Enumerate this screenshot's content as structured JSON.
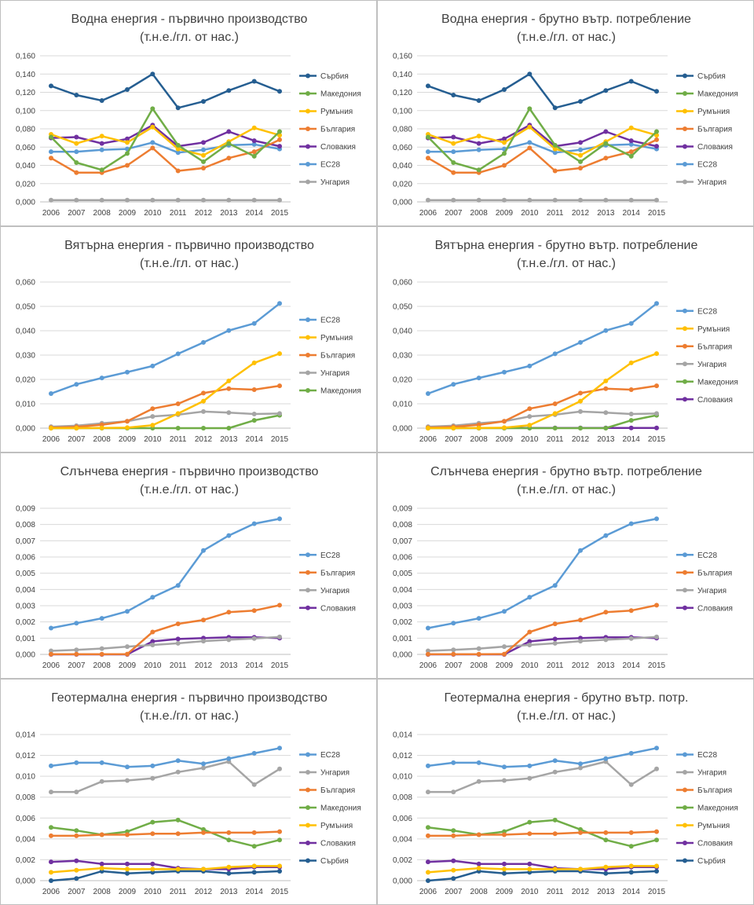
{
  "colors": {
    "Сърбия": "#255E91",
    "Македония": "#70AD47",
    "Румъния": "#FFC000",
    "България": "#ED7D31",
    "Словакия": "#7030A0",
    "ЕС28": "#5B9BD5",
    "Унгария": "#A5A5A5"
  },
  "chart_data": [
    {
      "type": "line",
      "title": "Водна енергия - първично производство",
      "subtitle": "(т.н.е./гл. от нас.)",
      "x": [
        "2006",
        "2007",
        "2008",
        "2009",
        "2010",
        "2011",
        "2012",
        "2013",
        "2014",
        "2015"
      ],
      "ylim": [
        0,
        0.16
      ],
      "ystep": 0.02,
      "ydecimals": 3,
      "yticks": [
        "0,000",
        "0,020",
        "0,040",
        "0,060",
        "0,080",
        "0,100",
        "0,120",
        "0,140",
        "0,160"
      ],
      "grid": true,
      "legend": "right",
      "series": [
        {
          "name": "Сърбия",
          "values": [
            0.127,
            0.117,
            0.111,
            0.123,
            0.14,
            0.103,
            0.11,
            0.122,
            0.132,
            0.121
          ]
        },
        {
          "name": "Македония",
          "values": [
            0.071,
            0.043,
            0.035,
            0.053,
            0.102,
            0.062,
            0.044,
            0.064,
            0.05,
            0.077
          ]
        },
        {
          "name": "Румъния",
          "values": [
            0.074,
            0.064,
            0.072,
            0.065,
            0.082,
            0.058,
            0.051,
            0.066,
            0.081,
            0.073
          ]
        },
        {
          "name": "България",
          "values": [
            0.048,
            0.032,
            0.032,
            0.04,
            0.059,
            0.034,
            0.037,
            0.048,
            0.055,
            0.068
          ]
        },
        {
          "name": "Словакия",
          "values": [
            0.07,
            0.071,
            0.064,
            0.069,
            0.084,
            0.061,
            0.065,
            0.077,
            0.067,
            0.061
          ]
        },
        {
          "name": "ЕС28",
          "values": [
            0.055,
            0.055,
            0.057,
            0.058,
            0.065,
            0.054,
            0.057,
            0.062,
            0.063,
            0.058
          ]
        },
        {
          "name": "Унгария",
          "values": [
            0.002,
            0.002,
            0.002,
            0.002,
            0.002,
            0.002,
            0.002,
            0.002,
            0.002,
            0.002
          ]
        }
      ]
    },
    {
      "type": "line",
      "title": "Водна енергия - брутно вътр. потребление",
      "subtitle": "(т.н.е./гл. от нас.)",
      "x": [
        "2006",
        "2007",
        "2008",
        "2009",
        "2010",
        "2011",
        "2012",
        "2013",
        "2014",
        "2015"
      ],
      "ylim": [
        0,
        0.16
      ],
      "ystep": 0.02,
      "ydecimals": 3,
      "yticks": [
        "0,000",
        "0,020",
        "0,040",
        "0,060",
        "0,080",
        "0,100",
        "0,120",
        "0,140",
        "0,160"
      ],
      "grid": true,
      "legend": "right",
      "series": [
        {
          "name": "Сърбия",
          "values": [
            0.127,
            0.117,
            0.111,
            0.123,
            0.14,
            0.103,
            0.11,
            0.122,
            0.132,
            0.121
          ]
        },
        {
          "name": "Македония",
          "values": [
            0.071,
            0.043,
            0.035,
            0.053,
            0.102,
            0.062,
            0.044,
            0.064,
            0.05,
            0.077
          ]
        },
        {
          "name": "Румъния",
          "values": [
            0.074,
            0.064,
            0.072,
            0.065,
            0.082,
            0.058,
            0.051,
            0.066,
            0.081,
            0.073
          ]
        },
        {
          "name": "България",
          "values": [
            0.048,
            0.032,
            0.032,
            0.04,
            0.059,
            0.034,
            0.037,
            0.048,
            0.055,
            0.068
          ]
        },
        {
          "name": "Словакия",
          "values": [
            0.07,
            0.071,
            0.064,
            0.069,
            0.084,
            0.061,
            0.065,
            0.077,
            0.067,
            0.061
          ]
        },
        {
          "name": "ЕС28",
          "values": [
            0.055,
            0.055,
            0.057,
            0.058,
            0.065,
            0.054,
            0.057,
            0.062,
            0.063,
            0.058
          ]
        },
        {
          "name": "Унгария",
          "values": [
            0.002,
            0.002,
            0.002,
            0.002,
            0.002,
            0.002,
            0.002,
            0.002,
            0.002,
            0.002
          ]
        }
      ]
    },
    {
      "type": "line",
      "title": "Вятърна енергия - първично производство",
      "subtitle": "(т.н.е./гл. от нас.)",
      "x": [
        "2006",
        "2007",
        "2008",
        "2009",
        "2010",
        "2011",
        "2012",
        "2013",
        "2014",
        "2015"
      ],
      "ylim": [
        0,
        0.06
      ],
      "ystep": 0.01,
      "ydecimals": 3,
      "yticks": [
        "0,000",
        "0,010",
        "0,020",
        "0,030",
        "0,040",
        "0,050",
        "0,060"
      ],
      "grid": true,
      "legend": "right",
      "series": [
        {
          "name": "ЕС28",
          "values": [
            0.0142,
            0.018,
            0.0206,
            0.023,
            0.0255,
            0.0305,
            0.0352,
            0.0401,
            0.043,
            0.0512
          ]
        },
        {
          "name": "Румъния",
          "values": [
            0.0,
            0.0,
            0.0001,
            0.0002,
            0.0012,
            0.006,
            0.0111,
            0.0194,
            0.0268,
            0.0306
          ]
        },
        {
          "name": "България",
          "values": [
            0.0002,
            0.0005,
            0.0014,
            0.0028,
            0.008,
            0.01,
            0.0144,
            0.0162,
            0.0158,
            0.0174
          ]
        },
        {
          "name": "Унгария",
          "values": [
            0.0006,
            0.001,
            0.002,
            0.0028,
            0.0048,
            0.0055,
            0.0068,
            0.0064,
            0.0058,
            0.006
          ]
        },
        {
          "name": "Македония",
          "values": [
            0.0,
            0.0,
            0.0,
            0.0,
            0.0,
            0.0,
            0.0,
            0.0,
            0.0032,
            0.0053
          ]
        }
      ]
    },
    {
      "type": "line",
      "title": "Вятърна енергия - брутно вътр. потребление",
      "subtitle": "(т.н.е./гл. от нас.)",
      "x": [
        "2006",
        "2007",
        "2008",
        "2009",
        "2010",
        "2011",
        "2012",
        "2013",
        "2014",
        "2015"
      ],
      "ylim": [
        0,
        0.06
      ],
      "ystep": 0.01,
      "ydecimals": 3,
      "yticks": [
        "0,000",
        "0,010",
        "0,020",
        "0,030",
        "0,040",
        "0,050",
        "0,060"
      ],
      "grid": true,
      "legend": "right",
      "series": [
        {
          "name": "ЕС28",
          "values": [
            0.0142,
            0.018,
            0.0206,
            0.023,
            0.0255,
            0.0305,
            0.0352,
            0.0401,
            0.043,
            0.0512
          ]
        },
        {
          "name": "Румъния",
          "values": [
            0.0,
            0.0,
            0.0001,
            0.0002,
            0.0012,
            0.006,
            0.0111,
            0.0194,
            0.0268,
            0.0306
          ]
        },
        {
          "name": "България",
          "values": [
            0.0002,
            0.0005,
            0.0014,
            0.0028,
            0.008,
            0.01,
            0.0144,
            0.0162,
            0.0158,
            0.0174
          ]
        },
        {
          "name": "Унгария",
          "values": [
            0.0006,
            0.001,
            0.002,
            0.0028,
            0.0048,
            0.0055,
            0.0068,
            0.0064,
            0.0058,
            0.006
          ]
        },
        {
          "name": "Македония",
          "values": [
            0.0,
            0.0,
            0.0,
            0.0,
            0.0,
            0.0,
            0.0,
            0.0,
            0.0032,
            0.0053
          ]
        },
        {
          "name": "Словакия",
          "values": [
            0.0001,
            0.0001,
            0.0001,
            0.0001,
            0.0001,
            0.0001,
            0.0001,
            0.0001,
            0.0001,
            0.0001
          ]
        }
      ]
    },
    {
      "type": "line",
      "title": "Слънчева енергия - първично производство",
      "subtitle": "(т.н.е./гл. от нас.)",
      "x": [
        "2006",
        "2007",
        "2008",
        "2009",
        "2010",
        "2011",
        "2012",
        "2013",
        "2014",
        "2015"
      ],
      "ylim": [
        0,
        0.009
      ],
      "ystep": 0.001,
      "ydecimals": 3,
      "yticks": [
        "0,000",
        "0,001",
        "0,002",
        "0,003",
        "0,004",
        "0,005",
        "0,006",
        "0,007",
        "0,008",
        "0,009"
      ],
      "grid": true,
      "legend": "right",
      "series": [
        {
          "name": "ЕС28",
          "values": [
            0.00162,
            0.00192,
            0.00222,
            0.00265,
            0.00352,
            0.00425,
            0.0064,
            0.00732,
            0.00805,
            0.00835
          ]
        },
        {
          "name": "България",
          "values": [
            1e-05,
            1e-05,
            1e-05,
            2e-05,
            0.00138,
            0.00188,
            0.00212,
            0.0026,
            0.0027,
            0.00303
          ]
        },
        {
          "name": "Унгария",
          "values": [
            0.00022,
            0.00028,
            0.00036,
            0.00048,
            0.00058,
            0.00068,
            0.00082,
            0.0009,
            0.00098,
            0.00108
          ]
        },
        {
          "name": "Словакия",
          "values": [
            0.0,
            0.0,
            0.0,
            0.0,
            0.0008,
            0.00095,
            0.001,
            0.00105,
            0.00105,
            0.001
          ]
        }
      ]
    },
    {
      "type": "line",
      "title": "Слънчева енергия - брутно вътр. потребление",
      "subtitle": "(т.н.е./гл. от нас.)",
      "x": [
        "2006",
        "2007",
        "2008",
        "2009",
        "2010",
        "2011",
        "2012",
        "2013",
        "2014",
        "2015"
      ],
      "ylim": [
        0,
        0.009
      ],
      "ystep": 0.001,
      "ydecimals": 3,
      "yticks": [
        "0,000",
        "0,001",
        "0,002",
        "0,003",
        "0,004",
        "0,005",
        "0,006",
        "0,007",
        "0,008",
        "0,009"
      ],
      "grid": true,
      "legend": "right",
      "series": [
        {
          "name": "ЕС28",
          "values": [
            0.00162,
            0.00192,
            0.00222,
            0.00265,
            0.00352,
            0.00425,
            0.0064,
            0.00732,
            0.00805,
            0.00835
          ]
        },
        {
          "name": "България",
          "values": [
            1e-05,
            1e-05,
            1e-05,
            2e-05,
            0.00138,
            0.00188,
            0.00212,
            0.0026,
            0.0027,
            0.00303
          ]
        },
        {
          "name": "Унгария",
          "values": [
            0.00022,
            0.00028,
            0.00036,
            0.00048,
            0.00058,
            0.00068,
            0.00082,
            0.0009,
            0.00098,
            0.00108
          ]
        },
        {
          "name": "Словакия",
          "values": [
            0.0,
            0.0,
            0.0,
            0.0,
            0.0008,
            0.00095,
            0.001,
            0.00105,
            0.00105,
            0.001
          ]
        }
      ]
    },
    {
      "type": "line",
      "title": "Геотермална енергия - първично производство",
      "subtitle": "(т.н.е./гл. от нас.)",
      "x": [
        "2006",
        "2007",
        "2008",
        "2009",
        "2010",
        "2011",
        "2012",
        "2013",
        "2014",
        "2015"
      ],
      "ylim": [
        0,
        0.014
      ],
      "ystep": 0.002,
      "ydecimals": 3,
      "yticks": [
        "0,000",
        "0,002",
        "0,004",
        "0,006",
        "0,008",
        "0,010",
        "0,012",
        "0,014"
      ],
      "grid": true,
      "legend": "right",
      "series": [
        {
          "name": "ЕС28",
          "values": [
            0.011,
            0.0113,
            0.0113,
            0.0109,
            0.011,
            0.0115,
            0.0112,
            0.0117,
            0.0122,
            0.0127
          ]
        },
        {
          "name": "Унгария",
          "values": [
            0.0085,
            0.0085,
            0.0095,
            0.0096,
            0.0098,
            0.0104,
            0.0108,
            0.0114,
            0.0092,
            0.0107
          ]
        },
        {
          "name": "България",
          "values": [
            0.0043,
            0.0043,
            0.0044,
            0.0044,
            0.0045,
            0.0045,
            0.0046,
            0.0046,
            0.0046,
            0.0047
          ]
        },
        {
          "name": "Македония",
          "values": [
            0.0051,
            0.0048,
            0.0044,
            0.0047,
            0.0056,
            0.0058,
            0.0049,
            0.0039,
            0.0033,
            0.0039
          ]
        },
        {
          "name": "Румъния",
          "values": [
            0.0008,
            0.001,
            0.0012,
            0.0011,
            0.0011,
            0.0011,
            0.0011,
            0.0013,
            0.0014,
            0.0014
          ]
        },
        {
          "name": "Словакия",
          "values": [
            0.0018,
            0.0019,
            0.0016,
            0.0016,
            0.0016,
            0.0012,
            0.0011,
            0.0011,
            0.0013,
            0.0013
          ]
        },
        {
          "name": "Сърбия",
          "values": [
            0.0,
            0.0002,
            0.0009,
            0.0007,
            0.0008,
            0.0009,
            0.0009,
            0.0007,
            0.0008,
            0.0009
          ]
        }
      ]
    },
    {
      "type": "line",
      "title": "Геотермална енергия - брутно вътр. потр.",
      "subtitle": "(т.н.е./гл. от нас.)",
      "x": [
        "2006",
        "2007",
        "2008",
        "2009",
        "2010",
        "2011",
        "2012",
        "2013",
        "2014",
        "2015"
      ],
      "ylim": [
        0,
        0.014
      ],
      "ystep": 0.002,
      "ydecimals": 3,
      "yticks": [
        "0,000",
        "0,002",
        "0,004",
        "0,006",
        "0,008",
        "0,010",
        "0,012",
        "0,014"
      ],
      "grid": true,
      "legend": "right",
      "series": [
        {
          "name": "ЕС28",
          "values": [
            0.011,
            0.0113,
            0.0113,
            0.0109,
            0.011,
            0.0115,
            0.0112,
            0.0117,
            0.0122,
            0.0127
          ]
        },
        {
          "name": "Унгария",
          "values": [
            0.0085,
            0.0085,
            0.0095,
            0.0096,
            0.0098,
            0.0104,
            0.0108,
            0.0114,
            0.0092,
            0.0107
          ]
        },
        {
          "name": "България",
          "values": [
            0.0043,
            0.0043,
            0.0044,
            0.0044,
            0.0045,
            0.0045,
            0.0046,
            0.0046,
            0.0046,
            0.0047
          ]
        },
        {
          "name": "Македония",
          "values": [
            0.0051,
            0.0048,
            0.0044,
            0.0047,
            0.0056,
            0.0058,
            0.0049,
            0.0039,
            0.0033,
            0.0039
          ]
        },
        {
          "name": "Румъния",
          "values": [
            0.0008,
            0.001,
            0.0012,
            0.0011,
            0.0011,
            0.0011,
            0.0011,
            0.0013,
            0.0014,
            0.0014
          ]
        },
        {
          "name": "Словакия",
          "values": [
            0.0018,
            0.0019,
            0.0016,
            0.0016,
            0.0016,
            0.0012,
            0.0011,
            0.0011,
            0.0013,
            0.0013
          ]
        },
        {
          "name": "Сърбия",
          "values": [
            0.0,
            0.0002,
            0.0009,
            0.0007,
            0.0008,
            0.0009,
            0.0009,
            0.0007,
            0.0008,
            0.0009
          ]
        }
      ]
    }
  ]
}
